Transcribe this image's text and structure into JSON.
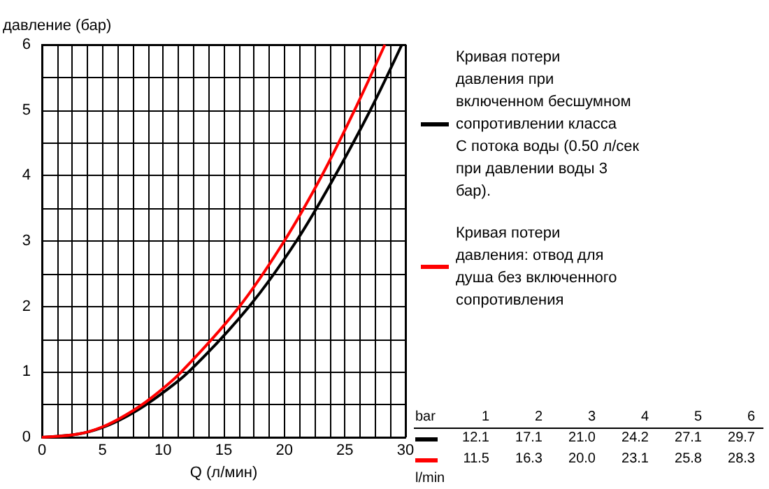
{
  "chart_data": {
    "type": "line",
    "xlabel": "Q (л/мин)",
    "ylabel": "давление (бар)",
    "xlim": [
      0,
      30
    ],
    "xticks": [
      0,
      5,
      10,
      15,
      20,
      25,
      30
    ],
    "ylim": [
      0,
      6
    ],
    "yticks": [
      0,
      1,
      2,
      3,
      4,
      5,
      6
    ],
    "grid": true,
    "legend": "right",
    "marker": "none",
    "line_style": "solid",
    "series": [
      {
        "name": "Кривая потери давления при включенном бесшумном сопротивлении класса С потока воды (0.50 л/сек при давлении воды 3 бар).",
        "color": "#000000",
        "x": [
          0,
          3,
          5,
          7,
          9,
          12.1,
          17.1,
          21.0,
          24.2,
          27.1,
          29.7
        ],
        "values": [
          0,
          0.05,
          0.15,
          0.32,
          0.55,
          1,
          2,
          3,
          4,
          5,
          6
        ]
      },
      {
        "name": "Кривая потери давления: отвод для душа без включенного сопротивления",
        "color": "#ff0000",
        "x": [
          0,
          3,
          5,
          7,
          9,
          11.5,
          16.3,
          20.0,
          23.1,
          25.8,
          28.3
        ],
        "values": [
          0,
          0.05,
          0.16,
          0.35,
          0.6,
          1,
          2,
          3,
          4,
          5,
          6
        ]
      }
    ],
    "annotations": [
      "bar",
      "1",
      "2",
      "3",
      "4",
      "5",
      "6",
      "12.1",
      "17.1",
      "21.0",
      "24.2",
      "27.1",
      "29.7",
      "11.5",
      "16.3",
      "20.0",
      "23.1",
      "25.8",
      "28.3",
      "l/min"
    ]
  }
}
